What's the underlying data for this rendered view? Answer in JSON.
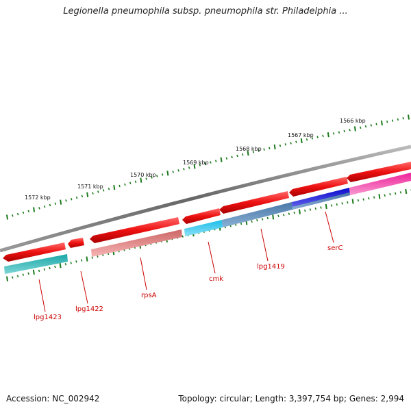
{
  "title": "Legionella pneumophila subsp. pneumophila str. Philadelphia ...",
  "accession": "Accession: NC_002942",
  "summary": "Topology: circular; Length: 3,397,754 bp; Genes: 2,994",
  "colors": {
    "backbone": "#7a7a7a",
    "tick": "#1a7a1a",
    "gene": "#ee1111",
    "label": "#cc0000",
    "cds_cyan": "#1aa7a7",
    "cds_sky": "#19bde8",
    "cds_salmon": "#ee8888",
    "cds_steel": "#4a78a8",
    "cds_blue": "#1010dd",
    "cds_pink": "#ee2299"
  },
  "scale_labels": [
    "1572 kbp",
    "1571 kbp",
    "1570 kbp",
    "1569 kbp",
    "1568 kbp",
    "1567 kbp",
    "1566 kbp"
  ],
  "genes": [
    {
      "name": "lpg1423"
    },
    {
      "name": "lpg1422"
    },
    {
      "name": "rpsA"
    },
    {
      "name": "cmk"
    },
    {
      "name": "lpg1419"
    },
    {
      "name": "serC"
    }
  ]
}
